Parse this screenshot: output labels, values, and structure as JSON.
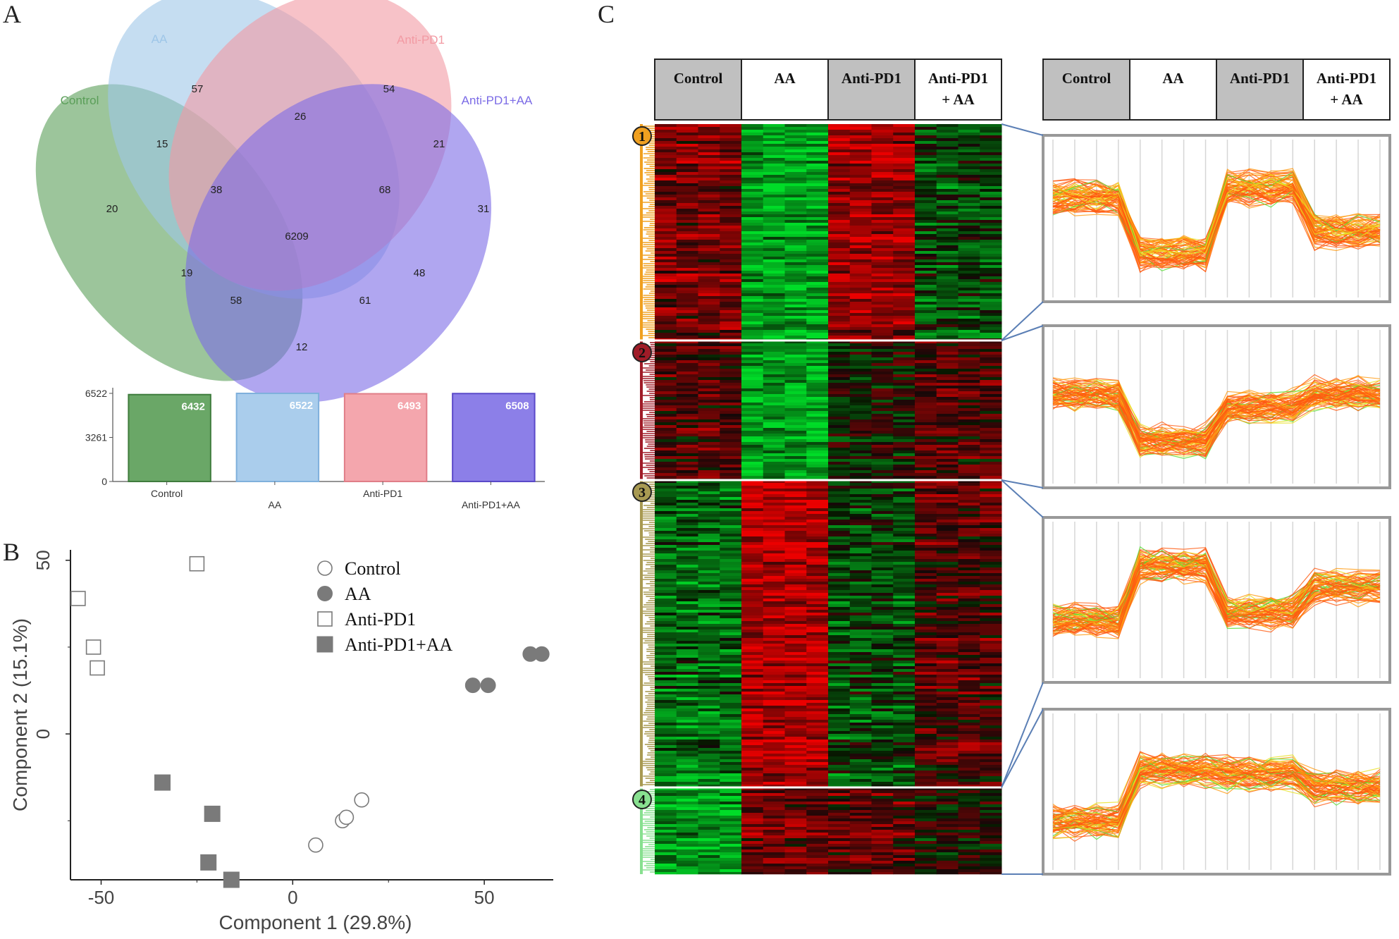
{
  "panels": {
    "a": "A",
    "b": "B",
    "c": "C"
  },
  "chart_data": [
    {
      "type": "venn",
      "sets": [
        {
          "name": "Control",
          "color": "#5a9e58"
        },
        {
          "name": "AA",
          "color": "#9ec6e8"
        },
        {
          "name": "Anti-PD1",
          "color": "#f29aa3"
        },
        {
          "name": "Anti-PD1+AA",
          "color": "#7b6be6"
        }
      ],
      "regions": [
        {
          "key": "AA",
          "value": 57
        },
        {
          "key": "AntiPD1",
          "value": 54
        },
        {
          "key": "AA_AntiPD1",
          "value": 26
        },
        {
          "key": "Control_AA",
          "value": 15
        },
        {
          "key": "AntiPD1_AntiPD1AA",
          "value": 21
        },
        {
          "key": "Control",
          "value": 20
        },
        {
          "key": "Control_AA_AntiPD1",
          "value": 38
        },
        {
          "key": "AA_AntiPD1_AntiPD1AA",
          "value": 68
        },
        {
          "key": "AntiPD1AA",
          "value": 31
        },
        {
          "key": "All",
          "value": 6209
        },
        {
          "key": "Control_AntiPD1",
          "value": 19
        },
        {
          "key": "AA_AntiPD1AA",
          "value": 48
        },
        {
          "key": "Control_AntiPD1_AntiPD1AA",
          "value": 58
        },
        {
          "key": "Control_AA_AntiPD1AA",
          "value": 61
        },
        {
          "key": "Control_AntiPD1AA",
          "value": 12
        }
      ]
    },
    {
      "type": "bar",
      "categories": [
        "Control",
        "AA",
        "Anti-PD1",
        "Anti-PD1+AA"
      ],
      "values": [
        6432,
        6522,
        6493,
        6508
      ],
      "value_labels": [
        "6432",
        "6522",
        "6493",
        "6508"
      ],
      "colors": [
        "#6aa767",
        "#aacdec",
        "#f4a6ad",
        "#8c7fe8"
      ],
      "edges": [
        "#3f7c3d",
        "#7fb0dc",
        "#e07e88",
        "#5a49c9"
      ],
      "yticks": [
        "6522",
        "3261",
        "0"
      ],
      "ylim": [
        0,
        6522
      ]
    },
    {
      "type": "scatter",
      "xlabel": "Component 1 (29.8%)",
      "ylabel": "Component 2 (15.1%)",
      "xlim": [
        -58,
        68
      ],
      "ylim": [
        -42,
        53
      ],
      "xticks": [
        "-50",
        "0",
        "50"
      ],
      "yticks": [
        "50",
        "0"
      ],
      "series": [
        {
          "name": "Control",
          "marker": "open-circle",
          "x": [
            6,
            13,
            14,
            18
          ],
          "y": [
            -32,
            -25,
            -24,
            -19
          ]
        },
        {
          "name": "AA",
          "marker": "filled-circle",
          "x": [
            47,
            51,
            62,
            65
          ],
          "y": [
            14,
            14,
            23,
            23
          ]
        },
        {
          "name": "Anti-PD1",
          "marker": "open-square",
          "x": [
            -56,
            -52,
            -51,
            -25
          ],
          "y": [
            39,
            25,
            19,
            49
          ]
        },
        {
          "name": "Anti-PD1+AA",
          "marker": "filled-square",
          "x": [
            -34,
            -21,
            -22,
            -16
          ],
          "y": [
            -14,
            -23,
            -37,
            -42
          ]
        }
      ]
    },
    {
      "type": "heatmap",
      "groups": [
        "Control",
        "AA",
        "Anti-PD1",
        "Anti-PD1 + AA"
      ],
      "header_left": [
        "Control",
        "AA",
        "Anti-PD1",
        "Anti-PD1",
        "+ AA"
      ],
      "header_right": [
        "Control",
        "AA",
        "Anti-PD1",
        "Anti-PD1",
        "+ AA"
      ],
      "clusters": [
        {
          "label": "1",
          "color": "#f0a020",
          "pattern": [
            0.5,
            -0.8,
            0.7,
            -0.3
          ]
        },
        {
          "label": "2",
          "color": "#a01c28",
          "pattern": [
            0.3,
            -0.8,
            0.0,
            0.3
          ]
        },
        {
          "label": "3",
          "color": "#a89a52",
          "pattern": [
            -0.5,
            0.8,
            -0.3,
            0.3
          ]
        },
        {
          "label": "4",
          "color": "#88e090",
          "pattern": [
            -0.7,
            0.5,
            0.4,
            0.1
          ]
        }
      ]
    }
  ]
}
